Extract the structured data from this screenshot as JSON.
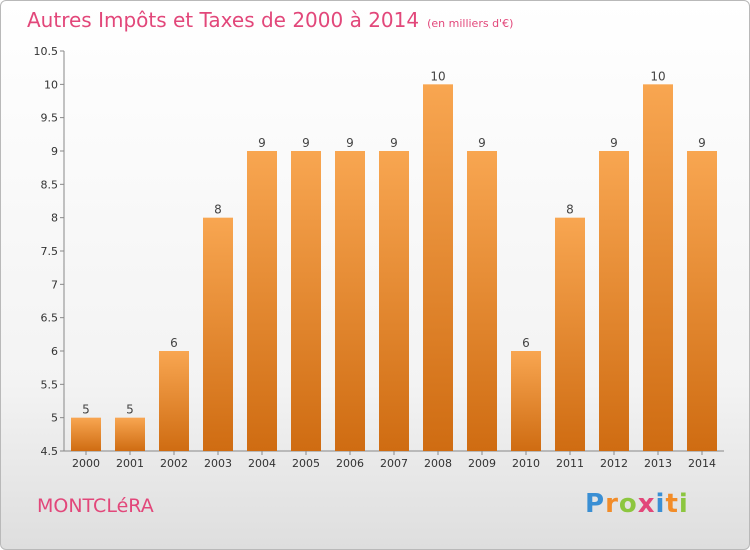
{
  "title": "Autres Impôts et Taxes de 2000 à 2014",
  "unit": "(en milliers d'€)",
  "town": "MONTCLéRA",
  "logo": {
    "letters": [
      "P",
      "r",
      "o",
      "x",
      "i",
      "t",
      "i"
    ],
    "colors": [
      "#3a8fd4",
      "#f28c28",
      "#8cc63f",
      "#e2477a",
      "#3a8fd4",
      "#f28c28",
      "#8cc63f"
    ]
  },
  "colors": {
    "bar_top": "#f8a651",
    "bar_bottom": "#cf6c12",
    "accent": "#e2477a"
  },
  "chart_data": {
    "type": "bar",
    "categories": [
      "2000",
      "2001",
      "2002",
      "2003",
      "2004",
      "2005",
      "2006",
      "2007",
      "2008",
      "2009",
      "2010",
      "2011",
      "2012",
      "2013",
      "2014"
    ],
    "values": [
      5,
      5,
      6,
      8,
      9,
      9,
      9,
      9,
      10,
      9,
      6,
      8,
      9,
      10,
      9
    ],
    "ylim": [
      4.5,
      10.5
    ],
    "yticks": [
      "4.5",
      "5",
      "5.5",
      "6",
      "6.5",
      "7",
      "7.5",
      "8",
      "8.5",
      "9",
      "9.5",
      "10",
      "10.5"
    ],
    "grid": false,
    "xlabel": "",
    "ylabel": ""
  }
}
